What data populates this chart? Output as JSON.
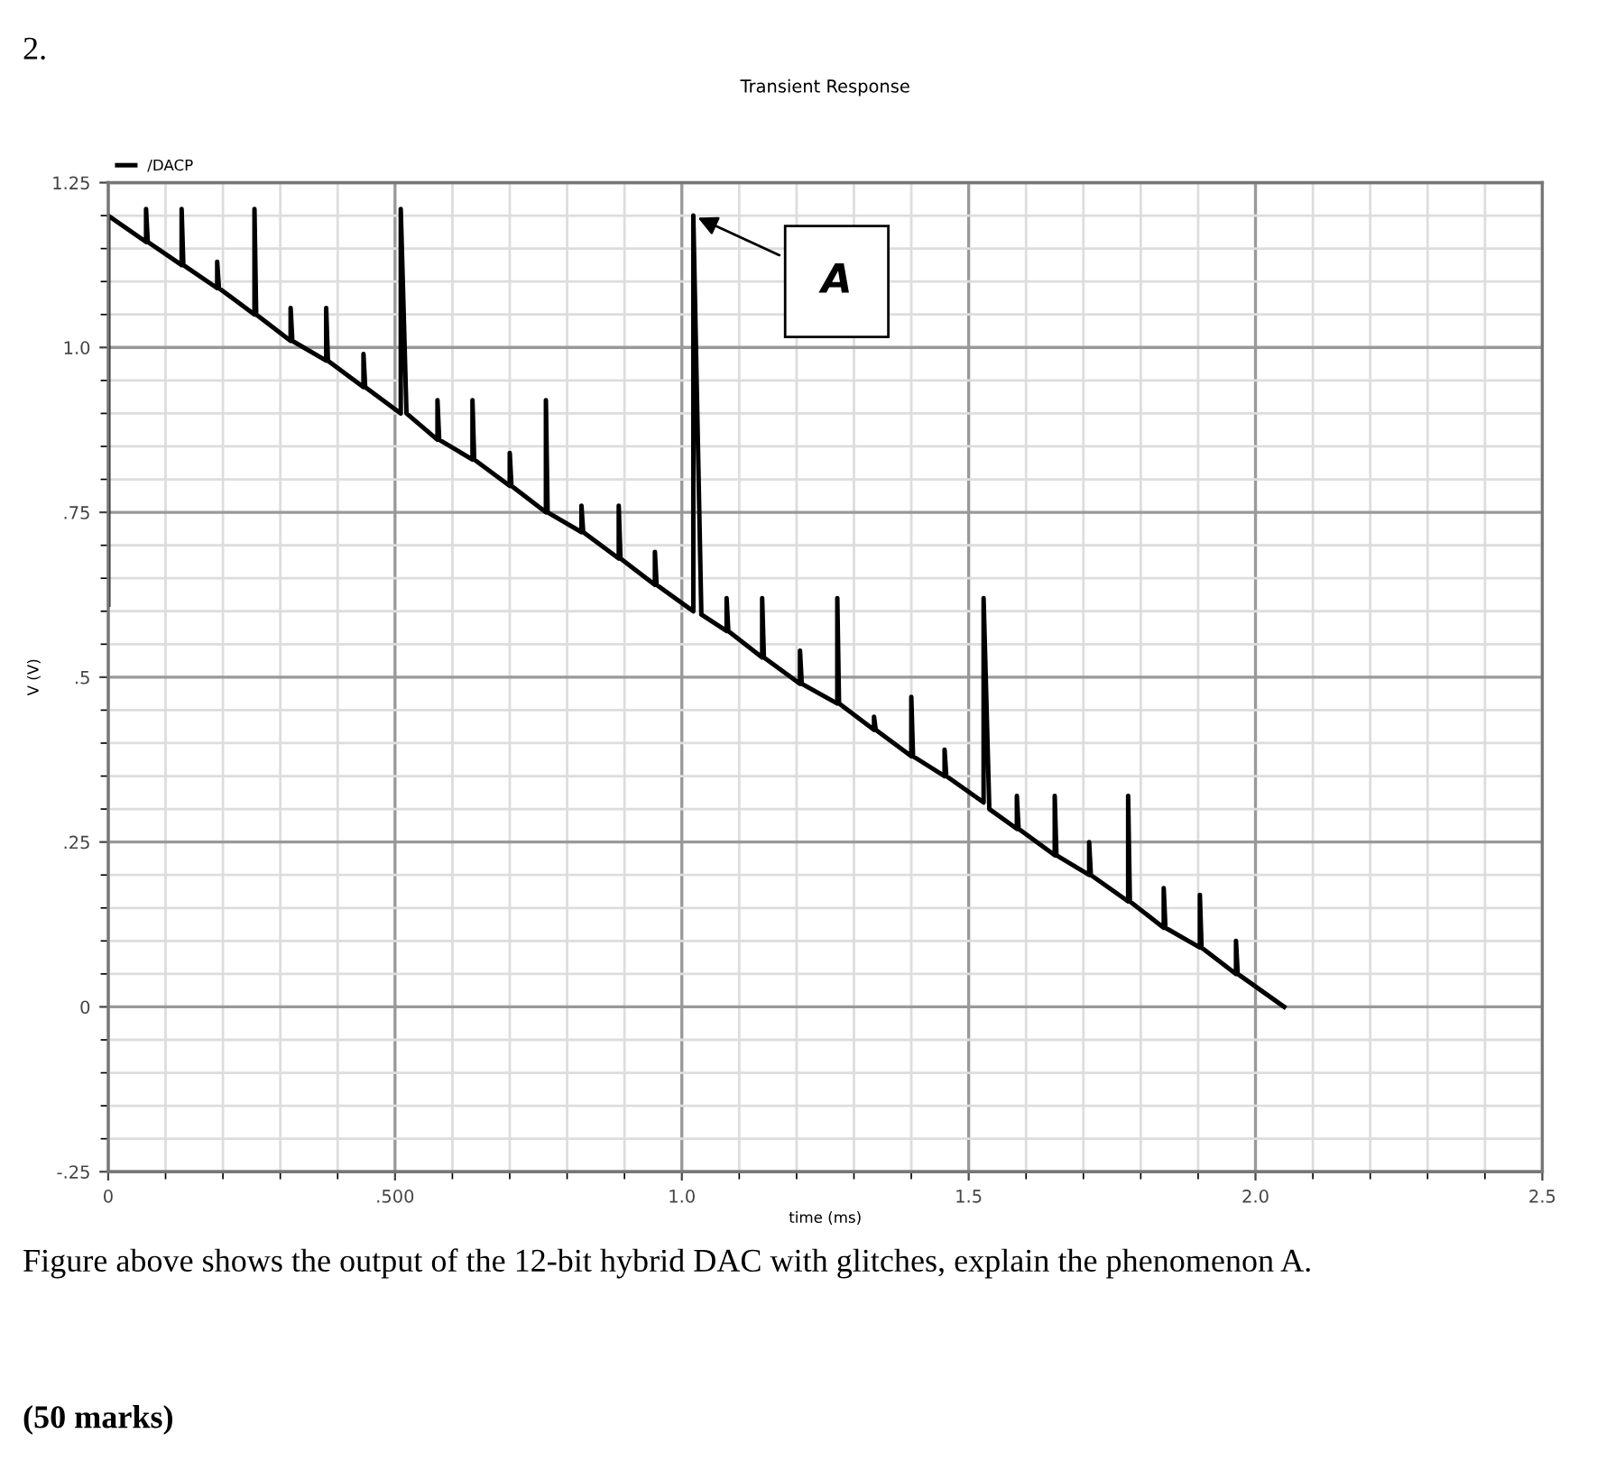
{
  "chart_data": {
    "type": "line",
    "title": "Transient Response",
    "xlabel": "time (ms)",
    "ylabel": "V (V)",
    "xlim": [
      0,
      2.5
    ],
    "ylim": [
      -0.25,
      1.25
    ],
    "xticks": [
      0,
      {
        "value": 0.5,
        "label": ".500"
      },
      {
        "value": 1,
        "label": "1.0"
      },
      1.5,
      {
        "value": 2,
        "label": "2.0"
      },
      2.5
    ],
    "yticks": [
      {
        "value": -0.25,
        "label": "-.25"
      },
      0,
      {
        "value": 0.25,
        "label": ".25"
      },
      {
        "value": 0.5,
        "label": ".5"
      },
      {
        "value": 0.75,
        "label": ".75"
      },
      {
        "value": 1,
        "label": "1.0"
      },
      1.25
    ],
    "grid": true,
    "legend": "top left",
    "marker": "none",
    "line_style": "solid",
    "series": [
      {
        "name": "/DACP",
        "color": "#000000",
        "x": [
          0,
          0,
          0.066,
          0.066,
          0.069,
          0.128,
          0.128,
          0.131,
          0.19,
          0.19,
          0.193,
          0.255,
          0.255,
          0.258,
          0.318,
          0.318,
          0.321,
          0.38,
          0.38,
          0.383,
          0.445,
          0.445,
          0.448,
          0.51,
          0.51,
          0.52,
          0.574,
          0.574,
          0.577,
          0.635,
          0.635,
          0.638,
          0.7,
          0.7,
          0.703,
          0.763,
          0.763,
          0.766,
          0.825,
          0.825,
          0.828,
          0.89,
          0.89,
          0.893,
          0.953,
          0.953,
          0.956,
          1.02,
          1.02,
          1.034,
          1.078,
          1.078,
          1.081,
          1.14,
          1.14,
          1.143,
          1.206,
          1.206,
          1.209,
          1.271,
          1.271,
          1.274,
          1.335,
          1.335,
          1.338,
          1.4,
          1.4,
          1.403,
          1.458,
          1.458,
          1.461,
          1.526,
          1.526,
          1.536,
          1.584,
          1.584,
          1.587,
          1.65,
          1.65,
          1.653,
          1.71,
          1.71,
          1.713,
          1.778,
          1.778,
          1.781,
          1.84,
          1.84,
          1.843,
          1.903,
          1.903,
          1.906,
          1.966,
          1.966,
          1.969,
          2.05
        ],
        "values": [
          0.61,
          1.2,
          1.16,
          1.21,
          1.16,
          1.125,
          1.21,
          1.125,
          1.09,
          1.13,
          1.09,
          1.05,
          1.21,
          1.05,
          1.01,
          1.06,
          1.01,
          0.98,
          1.06,
          0.98,
          0.94,
          0.99,
          0.94,
          0.9,
          1.21,
          0.9,
          0.86,
          0.92,
          0.86,
          0.83,
          0.92,
          0.83,
          0.79,
          0.84,
          0.79,
          0.75,
          0.92,
          0.75,
          0.72,
          0.76,
          0.72,
          0.68,
          0.76,
          0.68,
          0.64,
          0.69,
          0.64,
          0.6,
          1.2,
          0.595,
          0.57,
          0.62,
          0.57,
          0.53,
          0.62,
          0.53,
          0.49,
          0.54,
          0.49,
          0.46,
          0.62,
          0.46,
          0.42,
          0.44,
          0.42,
          0.38,
          0.47,
          0.38,
          0.35,
          0.39,
          0.35,
          0.31,
          0.62,
          0.3,
          0.27,
          0.32,
          0.27,
          0.23,
          0.32,
          0.23,
          0.2,
          0.25,
          0.2,
          0.16,
          0.32,
          0.16,
          0.12,
          0.18,
          0.12,
          0.09,
          0.17,
          0.09,
          0.05,
          0.1,
          0.05,
          0
        ]
      }
    ],
    "annotations": [
      {
        "text": "A",
        "x": 1.02,
        "y": 1.2
      },
      "2.",
      "Figure above shows the output of the 12-bit hybrid DAC with glitches, explain the phenomenon A.",
      "(50 marks)"
    ]
  }
}
